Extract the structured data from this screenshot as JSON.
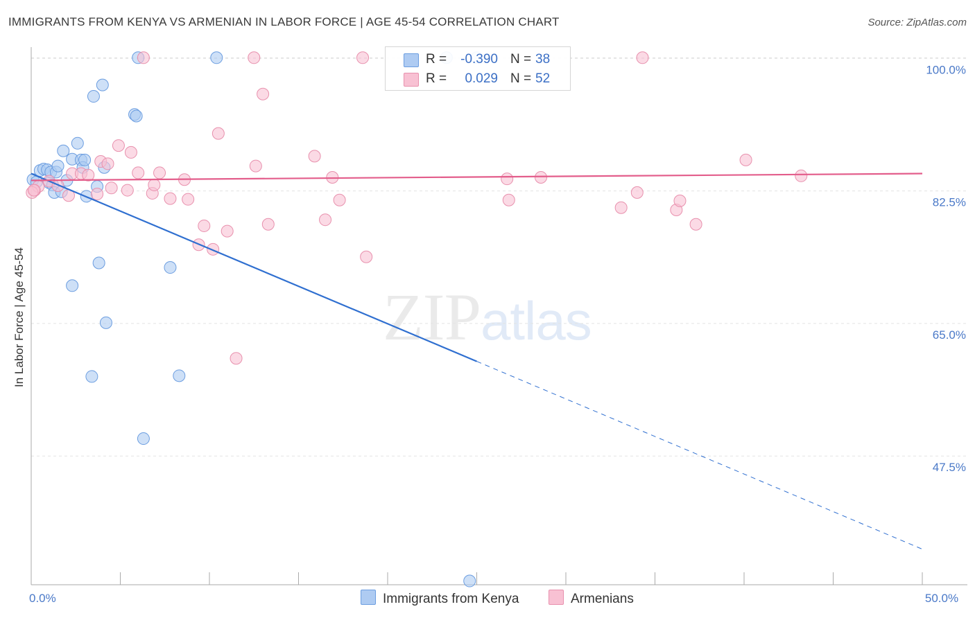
{
  "title": "IMMIGRANTS FROM KENYA VS ARMENIAN IN LABOR FORCE | AGE 45-54 CORRELATION CHART",
  "source": "Source: ZipAtlas.com",
  "watermark": {
    "zip": "ZIP",
    "atlas": "atlas"
  },
  "legend": {
    "r_label": "R =",
    "n_label": "N =",
    "rows": [
      {
        "r": "-0.390",
        "n": "38",
        "color": "#aecbf2",
        "border": "#6b9de0"
      },
      {
        "r": "0.029",
        "n": "52",
        "color": "#f8c1d3",
        "border": "#e890ad"
      }
    ]
  },
  "chart_data": {
    "type": "scatter",
    "title": "IMMIGRANTS FROM KENYA VS ARMENIAN IN LABOR FORCE | AGE 45-54 CORRELATION CHART",
    "xlabel": "",
    "ylabel": "In Labor Force | Age 45-54",
    "xlim": [
      0,
      50
    ],
    "ylim": [
      30.5,
      101.5
    ],
    "x_tick_labels": [
      {
        "value": 0,
        "label": "0.0%"
      },
      {
        "value": 50,
        "label": "50.0%"
      }
    ],
    "y_tick_labels": [
      {
        "value": 100,
        "label": "100.0%"
      },
      {
        "value": 82.5,
        "label": "82.5%"
      },
      {
        "value": 65,
        "label": "65.0%"
      },
      {
        "value": 47.5,
        "label": "47.5%"
      }
    ],
    "grid": true,
    "series": [
      {
        "name": "Immigrants from Kenya",
        "color": "#6b9de0",
        "fill": "#aecbf2",
        "trend": {
          "x0": 0,
          "y0": 84.8,
          "x1": 25,
          "y1": 60.0,
          "x_end": 50,
          "y_end": 35.2
        },
        "points": [
          [
            0.1,
            84.0
          ],
          [
            0.3,
            83.7
          ],
          [
            0.5,
            85.2
          ],
          [
            0.7,
            85.4
          ],
          [
            0.9,
            85.3
          ],
          [
            1.0,
            83.6
          ],
          [
            1.1,
            85.0
          ],
          [
            1.2,
            83.3
          ],
          [
            1.3,
            82.3
          ],
          [
            1.4,
            85.0
          ],
          [
            1.5,
            85.8
          ],
          [
            1.7,
            82.4
          ],
          [
            1.8,
            87.8
          ],
          [
            2.0,
            83.9
          ],
          [
            2.3,
            86.7
          ],
          [
            2.6,
            88.8
          ],
          [
            2.8,
            86.6
          ],
          [
            2.9,
            85.6
          ],
          [
            3.0,
            86.6
          ],
          [
            3.1,
            81.8
          ],
          [
            3.5,
            95.0
          ],
          [
            3.7,
            83.1
          ],
          [
            3.8,
            73.0
          ],
          [
            4.0,
            96.5
          ],
          [
            4.1,
            85.6
          ],
          [
            4.2,
            65.1
          ],
          [
            3.4,
            58.0
          ],
          [
            5.8,
            92.6
          ],
          [
            5.9,
            92.4
          ],
          [
            6.3,
            49.8
          ],
          [
            7.8,
            72.4
          ],
          [
            8.3,
            58.1
          ],
          [
            6.0,
            100.1
          ],
          [
            10.4,
            100.1
          ],
          [
            23.3,
            100.1
          ],
          [
            2.3,
            70.0
          ],
          [
            24.6,
            31.0
          ],
          [
            25.0,
            100.1
          ]
        ]
      },
      {
        "name": "Armenians",
        "color": "#e890ad",
        "fill": "#f8c1d3",
        "trend": {
          "x0": 0,
          "y0": 83.9,
          "x1": 50,
          "y1": 84.8
        },
        "points": [
          [
            0.2,
            82.6
          ],
          [
            0.4,
            83.1
          ],
          [
            1.0,
            83.8
          ],
          [
            1.5,
            83.2
          ],
          [
            2.1,
            81.9
          ],
          [
            2.3,
            84.8
          ],
          [
            2.8,
            84.8
          ],
          [
            3.2,
            84.6
          ],
          [
            3.7,
            82.1
          ],
          [
            3.9,
            86.4
          ],
          [
            4.3,
            86.1
          ],
          [
            4.5,
            82.9
          ],
          [
            4.9,
            88.5
          ],
          [
            5.4,
            82.6
          ],
          [
            5.6,
            87.6
          ],
          [
            6.0,
            84.9
          ],
          [
            6.8,
            82.2
          ],
          [
            6.9,
            83.3
          ],
          [
            7.2,
            84.9
          ],
          [
            7.8,
            81.5
          ],
          [
            8.6,
            84.0
          ],
          [
            8.8,
            81.4
          ],
          [
            9.4,
            75.4
          ],
          [
            9.7,
            77.9
          ],
          [
            10.2,
            74.8
          ],
          [
            10.5,
            90.1
          ],
          [
            11.0,
            77.2
          ],
          [
            11.5,
            60.4
          ],
          [
            12.6,
            85.8
          ],
          [
            13.0,
            95.3
          ],
          [
            13.3,
            78.1
          ],
          [
            15.9,
            87.1
          ],
          [
            16.5,
            78.7
          ],
          [
            16.9,
            84.3
          ],
          [
            17.3,
            81.3
          ],
          [
            18.8,
            73.8
          ],
          [
            6.3,
            100.1
          ],
          [
            12.5,
            100.1
          ],
          [
            18.6,
            100.1
          ],
          [
            34.3,
            100.1
          ],
          [
            26.7,
            84.1
          ],
          [
            26.8,
            81.3
          ],
          [
            28.6,
            84.3
          ],
          [
            33.1,
            80.3
          ],
          [
            34.0,
            82.3
          ],
          [
            36.2,
            80.0
          ],
          [
            36.4,
            81.2
          ],
          [
            37.3,
            78.1
          ],
          [
            40.1,
            86.6
          ],
          [
            43.2,
            84.5
          ],
          [
            0.05,
            82.3
          ],
          [
            0.15,
            82.6
          ]
        ]
      }
    ]
  }
}
